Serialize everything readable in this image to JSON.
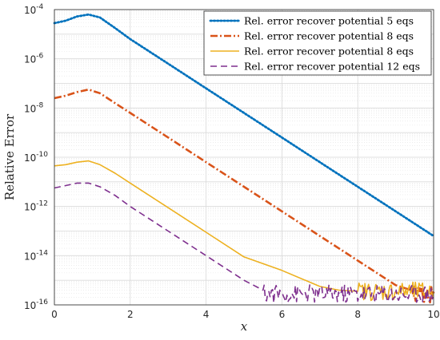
{
  "chart_data": {
    "type": "line",
    "title": "",
    "xlabel": "x",
    "ylabel": "Relative Error",
    "xlim": [
      0,
      10
    ],
    "ylim_log10": [
      -16,
      -4
    ],
    "y_scale": "log",
    "grid": true,
    "minor_grid": true,
    "legend_position": "top-right",
    "x_ticks": [
      "0",
      "2",
      "4",
      "6",
      "8",
      "10"
    ],
    "y_ticks": [
      {
        "base": "10",
        "exp": "-4"
      },
      {
        "base": "10",
        "exp": "-6"
      },
      {
        "base": "10",
        "exp": "-8"
      },
      {
        "base": "10",
        "exp": "-10"
      },
      {
        "base": "10",
        "exp": "-12"
      },
      {
        "base": "10",
        "exp": "-14"
      },
      {
        "base": "10",
        "exp": "-16"
      }
    ],
    "series": [
      {
        "name": "Rel. error recover potential 5 eqs",
        "color": "#0072BD",
        "style": "dotted",
        "x": [
          0,
          0.3,
          0.6,
          0.9,
          1.2,
          1.6,
          2,
          3,
          4,
          5,
          6,
          7,
          8,
          9,
          10
        ],
        "log10": [
          -4.55,
          -4.45,
          -4.28,
          -4.2,
          -4.32,
          -4.75,
          -5.2,
          -6.2,
          -7.2,
          -8.2,
          -9.2,
          -10.2,
          -11.2,
          -12.2,
          -13.2
        ]
      },
      {
        "name": "Rel. error recover potential 8 eqs",
        "color": "#D95319",
        "style": "dashdot",
        "x": [
          0,
          0.3,
          0.6,
          0.9,
          1.2,
          1.6,
          2,
          3,
          4,
          5,
          6,
          7,
          8,
          9,
          9.4,
          10
        ],
        "log10": [
          -7.6,
          -7.5,
          -7.35,
          -7.25,
          -7.4,
          -7.8,
          -8.2,
          -9.2,
          -10.2,
          -11.2,
          -12.2,
          -13.2,
          -14.2,
          -15.2,
          -15.4,
          -15.5
        ],
        "noise_from": 9.4,
        "noise_level": -15.55
      },
      {
        "name": "Rel. error recover potential 8 eqs",
        "color": "#EDB120",
        "style": "solid",
        "x": [
          0,
          0.3,
          0.6,
          0.9,
          1.2,
          1.6,
          2,
          3,
          4,
          5,
          6,
          7,
          7.5,
          8
        ],
        "log10": [
          -10.35,
          -10.3,
          -10.2,
          -10.15,
          -10.3,
          -10.65,
          -11.05,
          -12.05,
          -13.05,
          -14.05,
          -14.6,
          -15.25,
          -15.4,
          -15.45
        ],
        "noise_from": 8,
        "noise_level": -15.45
      },
      {
        "name": "Rel. error recover potential 12 eqs",
        "color": "#7E2F8E",
        "style": "dashed",
        "x": [
          0,
          0.3,
          0.6,
          0.9,
          1.2,
          1.6,
          2,
          3,
          4,
          5,
          5.5
        ],
        "log10": [
          -11.25,
          -11.15,
          -11.05,
          -11.05,
          -11.2,
          -11.55,
          -12.0,
          -13.0,
          -14.0,
          -15.0,
          -15.4
        ],
        "noise_from": 5.5,
        "noise_level": -15.55
      }
    ]
  }
}
